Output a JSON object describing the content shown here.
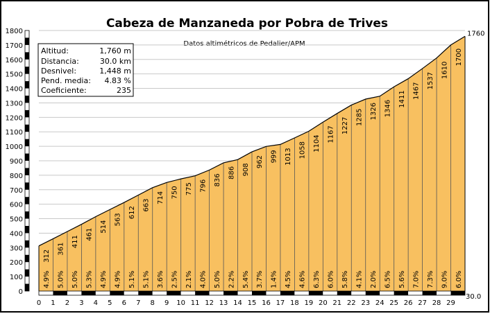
{
  "chart_data": {
    "type": "area",
    "title": "Cabeza de Manzaneda por Pobra de Trives",
    "subtitle": "Datos altimétricos de Pedalier/APM",
    "x_ticks": [
      "0",
      "1",
      "2",
      "3",
      "4",
      "5",
      "6",
      "7",
      "8",
      "9",
      "10",
      "11",
      "12",
      "13",
      "14",
      "15",
      "16",
      "17",
      "18",
      "19",
      "20",
      "21",
      "22",
      "23",
      "24",
      "25",
      "26",
      "27",
      "28",
      "29"
    ],
    "x_end_label": "30.0",
    "xlim": [
      0,
      30
    ],
    "y_ticks": [
      "0",
      "100",
      "200",
      "300",
      "400",
      "500",
      "600",
      "700",
      "800",
      "900",
      "1000",
      "1100",
      "1200",
      "1300",
      "1400",
      "1500",
      "1600",
      "1700",
      "1800"
    ],
    "ylim": [
      0,
      1800
    ],
    "end_altitude_label": "1760",
    "altitudes": [
      312,
      361,
      411,
      461,
      514,
      563,
      612,
      663,
      714,
      750,
      775,
      796,
      836,
      886,
      908,
      962,
      999,
      1013,
      1058,
      1104,
      1167,
      1227,
      1285,
      1326,
      1346,
      1411,
      1467,
      1537,
      1610,
      1700,
      1760
    ],
    "altitude_labels": [
      "312",
      "361",
      "411",
      "461",
      "514",
      "563",
      "612",
      "663",
      "714",
      "750",
      "775",
      "796",
      "836",
      "886",
      "908",
      "962",
      "999",
      "1013",
      "1058",
      "1104",
      "1167",
      "1227",
      "1285",
      "1326",
      "1346",
      "1411",
      "1467",
      "1537",
      "1610",
      "1700"
    ],
    "gradients": [
      "4.9%",
      "5.0%",
      "5.0%",
      "5.3%",
      "4.9%",
      "4.9%",
      "5.1%",
      "5.1%",
      "3.6%",
      "2.5%",
      "2.1%",
      "4.0%",
      "5.0%",
      "2.2%",
      "5.4%",
      "3.7%",
      "1.4%",
      "4.5%",
      "4.6%",
      "6.3%",
      "6.0%",
      "5.8%",
      "4.1%",
      "2.0%",
      "6.5%",
      "5.6%",
      "7.0%",
      "7.3%",
      "9.0%",
      "6.0%"
    ],
    "grid": true,
    "fill_color": "#f8c060",
    "stroke_color": "#000000"
  },
  "stats": {
    "rows": [
      {
        "label": "Altitud:",
        "value": "1,760 m"
      },
      {
        "label": "Distancia:",
        "value": "30.0 km"
      },
      {
        "label": "Desnivel:",
        "value": "1,448 m"
      },
      {
        "label": "Pend. media:",
        "value": "4.83 %"
      },
      {
        "label": "Coeficiente:",
        "value": "235"
      }
    ]
  }
}
